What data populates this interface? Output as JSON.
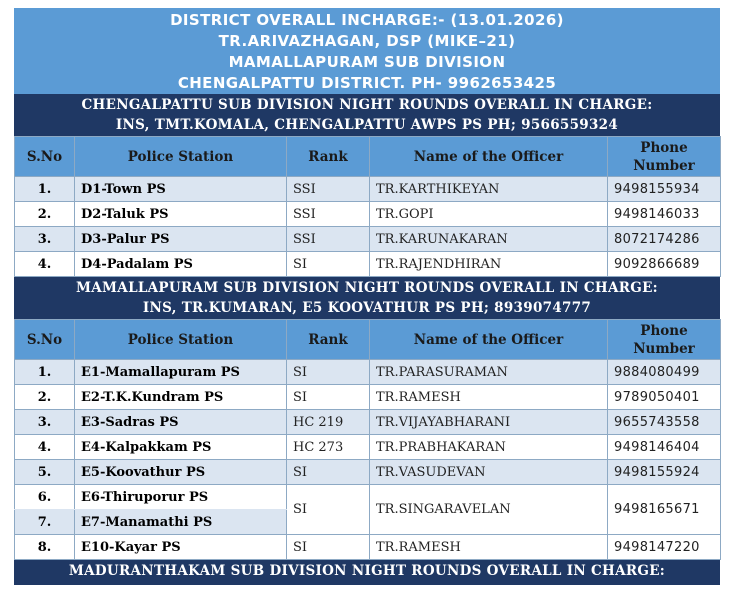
{
  "banner": {
    "line1": "DISTRICT OVERALL INCHARGE:- (13.01.2026)",
    "line2": "TR.ARIVAZHAGAN, DSP (MIKE–21)",
    "line3": "MAMALLAPURAM SUB DIVISION",
    "line4": "CHENGALPATTU DISTRICT. PH- 9962653425"
  },
  "columns": {
    "sno": "S.No",
    "station": "Police Station",
    "rank": "Rank",
    "officer": "Name of the Officer",
    "phone_1": "Phone",
    "phone_2": "Number"
  },
  "chengalpattu": {
    "header_1": "CHENGALPATTU SUB DIVISION NIGHT ROUNDS OVERALL IN CHARGE:",
    "header_2": "INS, TMT.KOMALA, CHENGALPATTU AWPS PS PH; 9566559324",
    "rows": [
      {
        "sno": "1.",
        "station": "D1-Town PS",
        "rank": "SSI",
        "officer": "TR.KARTHIKEYAN",
        "phone": "9498155934"
      },
      {
        "sno": "2.",
        "station": "D2-Taluk PS",
        "rank": "SSI",
        "officer": "TR.GOPI",
        "phone": "9498146033"
      },
      {
        "sno": "3.",
        "station": "D3-Palur PS",
        "rank": "SSI",
        "officer": "TR.KARUNAKARAN",
        "phone": "8072174286"
      },
      {
        "sno": "4.",
        "station": "D4-Padalam PS",
        "rank": "SI",
        "officer": "TR.RAJENDHIRAN",
        "phone": "9092866689"
      }
    ]
  },
  "mamallapuram": {
    "header_1": "MAMALLAPURAM SUB DIVISION NIGHT ROUNDS OVERALL IN CHARGE:",
    "header_2": "INS, TR.KUMARAN, E5 KOOVATHUR PS PH; 8939074777",
    "rows": [
      {
        "sno": "1.",
        "station": "E1-Mamallapuram PS",
        "rank": "SI",
        "officer": "TR.PARASURAMAN",
        "phone": "9884080499"
      },
      {
        "sno": "2.",
        "station": "E2-T.K.Kundram PS",
        "rank": "SI",
        "officer": "TR.RAMESH",
        "phone": "9789050401"
      },
      {
        "sno": "3.",
        "station": "E3-Sadras PS",
        "rank": "HC 219",
        "officer": "TR.VIJAYABHARANI",
        "phone": "9655743558"
      },
      {
        "sno": "4.",
        "station": "E4-Kalpakkam PS",
        "rank": "HC 273",
        "officer": "TR.PRABHAKARAN",
        "phone": "9498146404"
      },
      {
        "sno": "5.",
        "station": "E5-Koovathur PS",
        "rank": "SI",
        "officer": "TR.VASUDEVAN",
        "phone": "9498155924"
      }
    ],
    "merged": {
      "sno_a": "6.",
      "station_a": "E6-Thiruporur PS",
      "sno_b": "7.",
      "station_b": "E7-Manamathi PS",
      "rank": "SI",
      "officer": "TR.SINGARAVELAN",
      "phone": "9498165671"
    },
    "last": {
      "sno": "8.",
      "station": "E10-Kayar PS",
      "rank": "SI",
      "officer": "TR.RAMESH",
      "phone": "9498147220"
    }
  },
  "maduranthakam": {
    "header_1": "MADURANTHAKAM SUB DIVISION NIGHT ROUNDS OVERALL IN CHARGE:"
  }
}
